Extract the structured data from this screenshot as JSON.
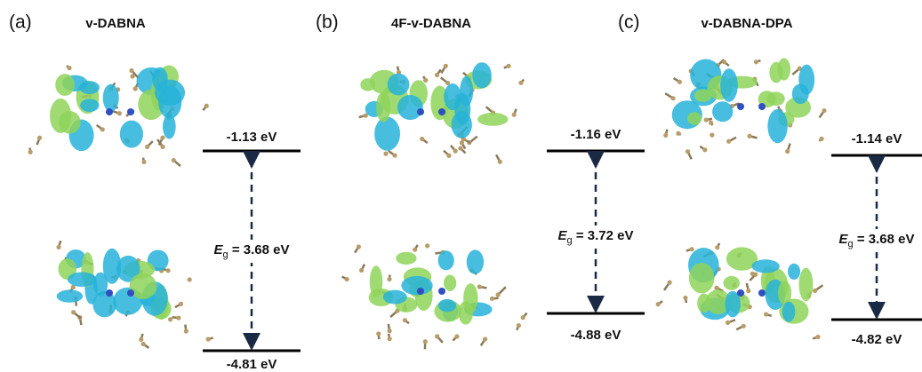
{
  "panels": [
    {
      "label": "(a)",
      "title": "v-DABNA",
      "lumo": "-1.13 eV",
      "homo": "-4.81 eV",
      "gap_symbol": "E",
      "gap_subscript": "g",
      "gap_value": " = 3.68 eV"
    },
    {
      "label": "(b)",
      "title": "4F-v-DABNA",
      "lumo": "-1.16 eV",
      "homo": "-4.88 eV",
      "gap_symbol": "E",
      "gap_subscript": "g",
      "gap_value": " = 3.72 eV"
    },
    {
      "label": "(c)",
      "title": "v-DABNA-DPA",
      "lumo": "-1.14 eV",
      "homo": "-4.82 eV",
      "gap_symbol": "E",
      "gap_subscript": "g",
      "gap_value": " = 3.68 eV"
    }
  ]
}
